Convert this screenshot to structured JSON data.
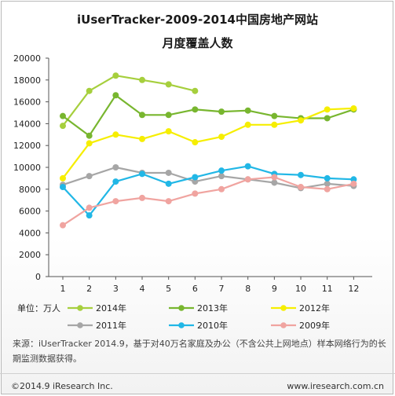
{
  "header": {
    "title_line1": "iUserTracker-2009-2014中国房地产网站",
    "title_line2": "月度覆盖人数"
  },
  "chart_data": {
    "type": "line",
    "unit_label": "单位：万人",
    "x": [
      1,
      2,
      3,
      4,
      5,
      6,
      7,
      8,
      9,
      10,
      11,
      12
    ],
    "xticks": [
      "1",
      "2",
      "3",
      "4",
      "5",
      "6",
      "7",
      "8",
      "9",
      "10",
      "11",
      "12"
    ],
    "ylim": [
      0,
      20000
    ],
    "yticks": [
      "0",
      "2000",
      "4000",
      "6000",
      "8000",
      "10000",
      "12000",
      "14000",
      "16000",
      "18000",
      "20000"
    ],
    "grid": false,
    "legend_position": "bottom",
    "series": [
      {
        "name": "2014年",
        "color": "#a6cf3d",
        "values": [
          13800,
          17000,
          18400,
          18000,
          17600,
          17000,
          null,
          null,
          null,
          null,
          null,
          null
        ]
      },
      {
        "name": "2013年",
        "color": "#78b62f",
        "values": [
          14700,
          12900,
          16600,
          14800,
          14800,
          15300,
          15100,
          15200,
          14700,
          14500,
          14500,
          15300
        ]
      },
      {
        "name": "2012年",
        "color": "#f6ee00",
        "values": [
          9000,
          12200,
          13000,
          12600,
          13300,
          12300,
          12800,
          13900,
          13900,
          14300,
          15300,
          15400
        ]
      },
      {
        "name": "2011年",
        "color": "#a6a6a6",
        "values": [
          8400,
          9200,
          10000,
          9500,
          9500,
          8700,
          9200,
          8900,
          8600,
          8100,
          8500,
          8300
        ]
      },
      {
        "name": "2010年",
        "color": "#21b7e6",
        "values": [
          8200,
          5600,
          8700,
          9400,
          8500,
          9100,
          9700,
          10100,
          9400,
          9300,
          9000,
          8900
        ]
      },
      {
        "name": "2009年",
        "color": "#f0a4a0",
        "values": [
          4700,
          6300,
          6900,
          7200,
          6900,
          7600,
          8000,
          8900,
          9100,
          8200,
          8000,
          8500
        ]
      }
    ]
  },
  "note": "来源：iUserTracker 2014.9，基于对40万名家庭及办公（不含公共上网地点）样本网络行为的长期监测数据获得。",
  "footer": {
    "copyright": "©2014.9 iResearch Inc.",
    "website": "www.iresearch.com.cn"
  }
}
